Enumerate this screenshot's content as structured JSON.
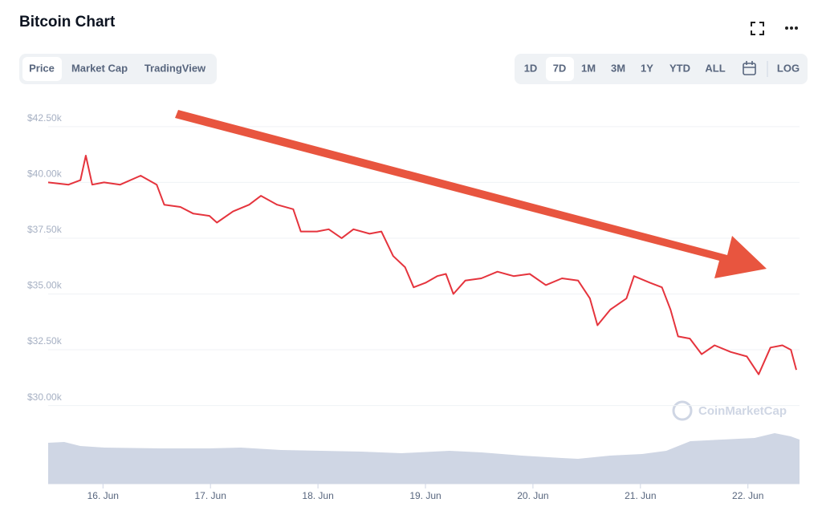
{
  "ui": {
    "tabs": [
      "Price",
      "Market Cap",
      "TradingView"
    ],
    "ranges": [
      "1D",
      "7D",
      "1M",
      "3M",
      "1Y",
      "YTD",
      "ALL"
    ],
    "log": "LOG",
    "watermark": "CoinMarketCap"
  },
  "chart_data": {
    "type": "line",
    "title": "Bitcoin Chart",
    "color": "#e5343d",
    "grid": true,
    "x": [
      15.49,
      15.68,
      15.79,
      15.84,
      15.9,
      16.01,
      16.16,
      16.35,
      16.5,
      16.57,
      16.72,
      16.84,
      16.99,
      17.06,
      17.21,
      17.36,
      17.47,
      17.62,
      17.77,
      17.84,
      17.99,
      18.1,
      18.22,
      18.33,
      18.48,
      18.59,
      18.7,
      18.81,
      18.89,
      19.0,
      19.11,
      19.19,
      19.26,
      19.37,
      19.52,
      19.67,
      19.82,
      19.97,
      20.12,
      20.27,
      20.42,
      20.53,
      20.6,
      20.72,
      20.87,
      20.94,
      21.09,
      21.2,
      21.28,
      21.35,
      21.46,
      21.57,
      21.69,
      21.84,
      21.99,
      22.1,
      22.21,
      22.32,
      22.4,
      22.45
    ],
    "values": [
      40000,
      39900,
      40100,
      41200,
      39900,
      40000,
      39900,
      40300,
      39900,
      39000,
      38900,
      38600,
      38500,
      38200,
      38700,
      39000,
      39400,
      39000,
      38800,
      37800,
      37800,
      37900,
      37500,
      37900,
      37700,
      37800,
      36700,
      36200,
      35300,
      35500,
      35800,
      35900,
      35000,
      35600,
      35700,
      36000,
      35800,
      35900,
      35400,
      35700,
      35600,
      34800,
      33600,
      34300,
      34800,
      35800,
      35500,
      35300,
      34300,
      33100,
      33000,
      32300,
      32700,
      32400,
      32200,
      31400,
      32600,
      32700,
      32500,
      31600
    ],
    "xlim": [
      15.49,
      22.48
    ],
    "xticks": [
      {
        "value": 16,
        "label": "16. Jun"
      },
      {
        "value": 17,
        "label": "17. Jun"
      },
      {
        "value": 18,
        "label": "18. Jun"
      },
      {
        "value": 19,
        "label": "19. Jun"
      },
      {
        "value": 20,
        "label": "20. Jun"
      },
      {
        "value": 21,
        "label": "21. Jun"
      },
      {
        "value": 22,
        "label": "22. Jun"
      }
    ],
    "ylim": [
      26500,
      43500
    ],
    "yticks": [
      {
        "value": 30000,
        "label": "$30.00k"
      },
      {
        "value": 32500,
        "label": "$32.50k"
      },
      {
        "value": 35000,
        "label": "$35.00k"
      },
      {
        "value": 37500,
        "label": "$37.50k"
      },
      {
        "value": 40000,
        "label": "$40.00k"
      },
      {
        "value": 42500,
        "label": "$42.50k"
      }
    ]
  }
}
